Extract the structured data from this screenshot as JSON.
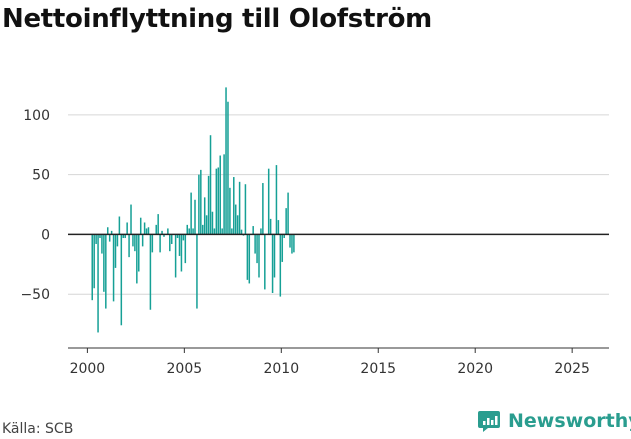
{
  "title": "Nettoinflyttning till Olofström",
  "source": "Källa: SCB",
  "brand": {
    "name": "Newsworthy",
    "icon": "newsworthy-logo-icon",
    "color": "#2a9d8f"
  },
  "chart_data": {
    "type": "bar",
    "title": "Nettoinflyttning till Olofström",
    "xlabel": "",
    "ylabel": "",
    "bar_color": "#16a096",
    "zero_line_color": "#222222",
    "grid": true,
    "ylim": [
      -95,
      125
    ],
    "xlim": [
      1999.0,
      2026.9
    ],
    "yticks": [
      -50,
      0,
      50,
      100
    ],
    "ytick_labels": [
      "−50",
      "0",
      "50",
      "100"
    ],
    "xticks": [
      2000,
      2005,
      2010,
      2015,
      2020,
      2025
    ],
    "xtick_labels": [
      "2000",
      "2005",
      "2010",
      "2015",
      "2020",
      "2025"
    ],
    "series": [
      {
        "start": 2000.25,
        "step": 0.1,
        "values": [
          -55,
          -45,
          -8,
          -82,
          -3,
          -16,
          -48,
          -62,
          6,
          -6,
          3,
          -56,
          -28,
          -10,
          15,
          -76,
          -3,
          -3,
          10,
          -19,
          25,
          -10,
          -14,
          -41,
          -31,
          14,
          -10,
          10,
          5,
          6,
          -63,
          -15,
          0,
          8,
          17,
          -15,
          3,
          -2,
          0,
          5,
          -14,
          -8,
          0,
          -36,
          -3,
          -18,
          -31,
          -5,
          -24,
          8,
          5,
          35,
          5,
          29,
          -62,
          50,
          54,
          8,
          31,
          16,
          49,
          83,
          19,
          5,
          55,
          56,
          66,
          5,
          67,
          123,
          111,
          39,
          5,
          48,
          25,
          16,
          44,
          4,
          -1,
          42,
          -38,
          -41,
          0,
          7,
          -16,
          -24,
          -36,
          5,
          43,
          -46,
          0,
          55,
          13,
          -49,
          -36,
          58,
          12,
          -52,
          -23,
          -3,
          22,
          35,
          -11,
          -16,
          -15
        ]
      }
    ]
  }
}
